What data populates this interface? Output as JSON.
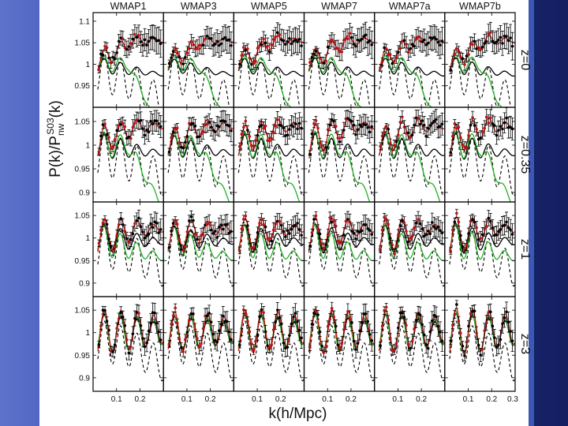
{
  "slide": {
    "background_colors": [
      "#5e73cc",
      "#142062"
    ],
    "accent_bar_color": "#3d57b5"
  },
  "chart_data": {
    "type": "line",
    "title": "",
    "xlabel": "k(h/Mpc)",
    "ylabel": "P(k)/P_nw^S03(k)",
    "ylabel_main": "P(k)/P",
    "ylabel_sub": "nw",
    "ylabel_sup": "S03",
    "ylabel_tail": "(k)",
    "columns": [
      "WMAP1",
      "WMAP3",
      "WMAP5",
      "WMAP7",
      "WMAP7a",
      "WMAP7b"
    ],
    "rows": [
      "z=0",
      "z=0.35",
      "z=1",
      "z=3"
    ],
    "xlim": [
      0.0,
      0.3
    ],
    "x_ticks": [
      0.1,
      0.2
    ],
    "x_tick_labels": [
      "0.1",
      "0.2"
    ],
    "x_tick_last_label": "0.3",
    "row_ylims": [
      [
        0.9,
        1.12
      ],
      [
        0.88,
        1.08
      ],
      [
        0.87,
        1.08
      ],
      [
        0.87,
        1.08
      ]
    ],
    "row_y_ticks": [
      [
        {
          "v": 0.95,
          "label": "0.95"
        },
        {
          "v": 1.0,
          "label": "1"
        },
        {
          "v": 1.05,
          "label": "1.05"
        },
        {
          "v": 1.1,
          "label": "1.1"
        }
      ],
      [
        {
          "v": 0.9,
          "label": "0.9"
        },
        {
          "v": 0.95,
          "label": "0.95"
        },
        {
          "v": 1.0,
          "label": "1"
        },
        {
          "v": 1.05,
          "label": "1.05"
        }
      ],
      [
        {
          "v": 0.9,
          "label": "0.9"
        },
        {
          "v": 0.95,
          "label": "0.95"
        },
        {
          "v": 1.0,
          "label": "1"
        },
        {
          "v": 1.05,
          "label": "1.05"
        }
      ],
      [
        {
          "v": 0.9,
          "label": "0.9"
        },
        {
          "v": 0.95,
          "label": "0.95"
        },
        {
          "v": 1.0,
          "label": "1"
        },
        {
          "v": 1.05,
          "label": "1.05"
        }
      ]
    ],
    "series": [
      {
        "name": "linear theory (dashed)",
        "color": "#000000",
        "style": "dashed"
      },
      {
        "name": "model (solid black)",
        "color": "#000000",
        "style": "solid"
      },
      {
        "name": "model (green)",
        "color": "#22b022",
        "style": "solid"
      },
      {
        "name": "model (red)",
        "color": "#d01414",
        "style": "solid"
      },
      {
        "name": "simulation measurements (points with error bars)",
        "color": "#000000",
        "style": "markers"
      },
      {
        "name": "simulation measurements (red points)",
        "color": "#c01010",
        "style": "markers"
      }
    ],
    "grid": false,
    "legend": "none"
  }
}
